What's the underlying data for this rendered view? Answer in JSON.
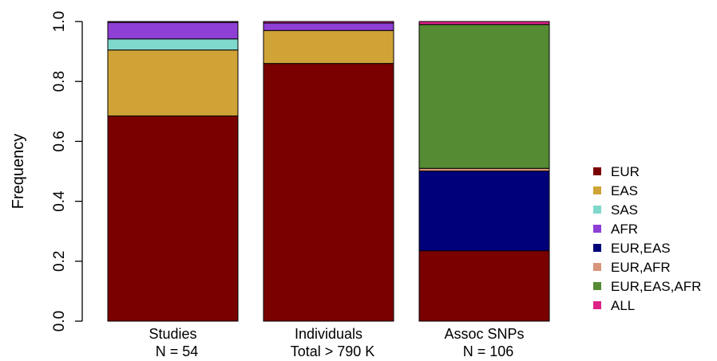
{
  "chart_data": {
    "type": "bar",
    "stacked": true,
    "ylabel": "Frequency",
    "ylim": [
      0,
      1.0
    ],
    "yticks": [
      "0.0",
      "0.2",
      "0.4",
      "0.6",
      "0.8",
      "1.0"
    ],
    "categories": [
      {
        "line1": "Studies",
        "line2": "N = 54"
      },
      {
        "line1": "Individuals",
        "line2": "Total > 790 K"
      },
      {
        "line1": "Assoc SNPs",
        "line2": "N = 106"
      }
    ],
    "series": [
      {
        "name": "EUR",
        "color": "#7a0000",
        "values": [
          0.685,
          0.86,
          0.235
        ]
      },
      {
        "name": "EAS",
        "color": "#d0a337",
        "values": [
          0.22,
          0.11,
          0.0
        ]
      },
      {
        "name": "SAS",
        "color": "#7fd8cc",
        "values": [
          0.037,
          0.0,
          0.0
        ]
      },
      {
        "name": "AFR",
        "color": "#8e3fd6",
        "values": [
          0.055,
          0.025,
          0.0
        ]
      },
      {
        "name": "EUR,EAS",
        "color": "#00007a",
        "values": [
          0.0,
          0.0,
          0.266
        ]
      },
      {
        "name": "EUR,AFR",
        "color": "#d9957a",
        "values": [
          0.0,
          0.0,
          0.009
        ]
      },
      {
        "name": "EUR,EAS,AFR",
        "color": "#558b33",
        "values": [
          0.0,
          0.0,
          0.48
        ]
      },
      {
        "name": "ALL",
        "color": "#dd2288",
        "values": [
          0.003,
          0.005,
          0.01
        ]
      }
    ],
    "legend_position": "right"
  }
}
